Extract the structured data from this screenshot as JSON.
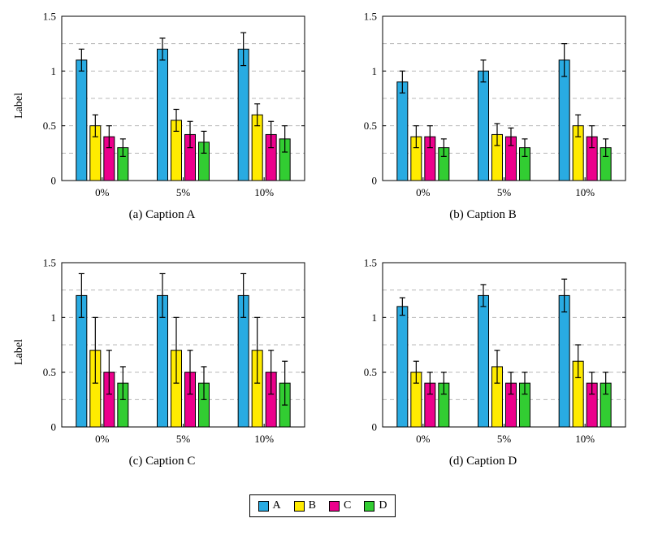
{
  "figure": {
    "ylabel": "Label",
    "background_color": "#ffffff",
    "grid_color": "#b8b8b8",
    "axis_color": "#000000",
    "legend_position": "figure-bottom-center",
    "legend": [
      {
        "label": "A",
        "color": "#29ABE2"
      },
      {
        "label": "B",
        "color": "#FFEB00"
      },
      {
        "label": "C",
        "color": "#EC008C"
      },
      {
        "label": "D",
        "color": "#32CD32"
      }
    ]
  },
  "chart_data": [
    {
      "type": "bar",
      "caption": "(a) Caption A",
      "ylabel": "Label",
      "xlabel": "",
      "categories": [
        "0%",
        "5%",
        "10%"
      ],
      "ylim": [
        0,
        1.5
      ],
      "yticks": [
        0,
        0.5,
        1,
        1.5
      ],
      "gridlines": [
        0.25,
        0.5,
        0.75,
        1,
        1.25
      ],
      "grid": "dashed",
      "error_bars": true,
      "series": [
        {
          "name": "A",
          "color": "#29ABE2",
          "values": [
            1.1,
            1.2,
            1.2
          ],
          "errors": [
            0.1,
            0.1,
            0.15
          ]
        },
        {
          "name": "B",
          "color": "#FFEB00",
          "values": [
            0.5,
            0.55,
            0.6
          ],
          "errors": [
            0.1,
            0.1,
            0.1
          ]
        },
        {
          "name": "C",
          "color": "#EC008C",
          "values": [
            0.4,
            0.42,
            0.42
          ],
          "errors": [
            0.1,
            0.12,
            0.12
          ]
        },
        {
          "name": "D",
          "color": "#32CD32",
          "values": [
            0.3,
            0.35,
            0.38
          ],
          "errors": [
            0.08,
            0.1,
            0.12
          ]
        }
      ]
    },
    {
      "type": "bar",
      "caption": "(b) Caption B",
      "ylabel": "",
      "xlabel": "",
      "categories": [
        "0%",
        "5%",
        "10%"
      ],
      "ylim": [
        0,
        1.5
      ],
      "yticks": [
        0,
        0.5,
        1,
        1.5
      ],
      "gridlines": [
        0.25,
        0.5,
        0.75,
        1,
        1.25
      ],
      "grid": "dashed",
      "error_bars": true,
      "series": [
        {
          "name": "A",
          "color": "#29ABE2",
          "values": [
            0.9,
            1.0,
            1.1
          ],
          "errors": [
            0.1,
            0.1,
            0.15
          ]
        },
        {
          "name": "B",
          "color": "#FFEB00",
          "values": [
            0.4,
            0.42,
            0.5
          ],
          "errors": [
            0.1,
            0.1,
            0.1
          ]
        },
        {
          "name": "C",
          "color": "#EC008C",
          "values": [
            0.4,
            0.4,
            0.4
          ],
          "errors": [
            0.1,
            0.08,
            0.1
          ]
        },
        {
          "name": "D",
          "color": "#32CD32",
          "values": [
            0.3,
            0.3,
            0.3
          ],
          "errors": [
            0.08,
            0.08,
            0.08
          ]
        }
      ]
    },
    {
      "type": "bar",
      "caption": "(c) Caption C",
      "ylabel": "Label",
      "xlabel": "",
      "categories": [
        "0%",
        "5%",
        "10%"
      ],
      "ylim": [
        0,
        1.5
      ],
      "yticks": [
        0,
        0.5,
        1,
        1.5
      ],
      "gridlines": [
        0.25,
        0.5,
        0.75,
        1,
        1.25
      ],
      "grid": "dashed",
      "error_bars": true,
      "series": [
        {
          "name": "A",
          "color": "#29ABE2",
          "values": [
            1.2,
            1.2,
            1.2
          ],
          "errors": [
            0.2,
            0.2,
            0.2
          ]
        },
        {
          "name": "B",
          "color": "#FFEB00",
          "values": [
            0.7,
            0.7,
            0.7
          ],
          "errors": [
            0.3,
            0.3,
            0.3
          ]
        },
        {
          "name": "C",
          "color": "#EC008C",
          "values": [
            0.5,
            0.5,
            0.5
          ],
          "errors": [
            0.2,
            0.2,
            0.2
          ]
        },
        {
          "name": "D",
          "color": "#32CD32",
          "values": [
            0.4,
            0.4,
            0.4
          ],
          "errors": [
            0.15,
            0.15,
            0.2
          ]
        }
      ]
    },
    {
      "type": "bar",
      "caption": "(d) Caption D",
      "ylabel": "",
      "xlabel": "",
      "categories": [
        "0%",
        "5%",
        "10%"
      ],
      "ylim": [
        0,
        1.5
      ],
      "yticks": [
        0,
        0.5,
        1,
        1.5
      ],
      "gridlines": [
        0.25,
        0.5,
        0.75,
        1,
        1.25
      ],
      "grid": "dashed",
      "error_bars": true,
      "series": [
        {
          "name": "A",
          "color": "#29ABE2",
          "values": [
            1.1,
            1.2,
            1.2
          ],
          "errors": [
            0.08,
            0.1,
            0.15
          ]
        },
        {
          "name": "B",
          "color": "#FFEB00",
          "values": [
            0.5,
            0.55,
            0.6
          ],
          "errors": [
            0.1,
            0.15,
            0.15
          ]
        },
        {
          "name": "C",
          "color": "#EC008C",
          "values": [
            0.4,
            0.4,
            0.4
          ],
          "errors": [
            0.1,
            0.1,
            0.1
          ]
        },
        {
          "name": "D",
          "color": "#32CD32",
          "values": [
            0.4,
            0.4,
            0.4
          ],
          "errors": [
            0.1,
            0.1,
            0.1
          ]
        }
      ]
    }
  ]
}
